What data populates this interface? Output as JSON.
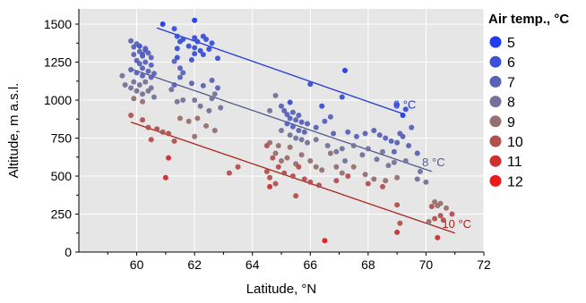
{
  "chart_data": {
    "type": "scatter",
    "title": "",
    "xlabel": "Latitude, °N",
    "ylabel": "Altitude, m a.s.l.",
    "xlim": [
      58,
      72
    ],
    "ylim": [
      0,
      1600
    ],
    "xticks": [
      60,
      62,
      64,
      66,
      68,
      70,
      72
    ],
    "yticks": [
      0,
      250,
      500,
      750,
      1000,
      1250,
      1500
    ],
    "grid": true,
    "legend": {
      "title": "Air temp., °C",
      "placement": "right",
      "entries": [
        {
          "label": "5",
          "color": "#1f3cf0"
        },
        {
          "label": "6",
          "color": "#3a50d6"
        },
        {
          "label": "7",
          "color": "#5a62b8"
        },
        {
          "label": "8",
          "color": "#76739a"
        },
        {
          "label": "9",
          "color": "#967070"
        },
        {
          "label": "10",
          "color": "#b2504e"
        },
        {
          "label": "11",
          "color": "#cc3030"
        },
        {
          "label": "12",
          "color": "#ea1a1a"
        }
      ]
    },
    "isotherms": [
      {
        "label": "6 °C",
        "color": "#2237d6",
        "x": [
          60.7,
          69.2
        ],
        "y": [
          1475,
          910
        ]
      },
      {
        "label": "8 °C",
        "color": "#525a8e",
        "x": [
          59.8,
          70.2
        ],
        "y": [
          1205,
          530
        ]
      },
      {
        "label": "10 °C",
        "color": "#a8241e",
        "x": [
          59.8,
          71.0
        ],
        "y": [
          855,
          125
        ]
      }
    ],
    "series": [
      {
        "legend_index": 0,
        "points": [
          [
            62.0,
            1525
          ],
          [
            60.9,
            1500
          ],
          [
            67.2,
            1195
          ],
          [
            69.2,
            900
          ]
        ]
      },
      {
        "legend_index": 1,
        "points": [
          [
            61.3,
            1470
          ],
          [
            61.4,
            1420
          ],
          [
            61.6,
            1400
          ],
          [
            61.5,
            1385
          ],
          [
            61.8,
            1355
          ],
          [
            62.0,
            1410
          ],
          [
            62.1,
            1385
          ],
          [
            62.3,
            1420
          ],
          [
            62.4,
            1400
          ],
          [
            62.6,
            1375
          ],
          [
            62.0,
            1345
          ],
          [
            62.2,
            1325
          ],
          [
            62.3,
            1300
          ],
          [
            62.0,
            1305
          ],
          [
            62.5,
            1335
          ],
          [
            62.8,
            1275
          ],
          [
            61.9,
            1265
          ],
          [
            61.4,
            1280
          ],
          [
            60.3,
            1330
          ],
          [
            60.1,
            1355
          ],
          [
            60.2,
            1300
          ],
          [
            61.4,
            1340
          ],
          [
            66.0,
            1105
          ],
          [
            67.1,
            1020
          ],
          [
            69.0,
            970
          ],
          [
            69.3,
            940
          ],
          [
            65.3,
            985
          ],
          [
            66.4,
            960
          ]
        ]
      },
      {
        "legend_index": 2,
        "points": [
          [
            59.8,
            1390
          ],
          [
            59.9,
            1350
          ],
          [
            60.0,
            1370
          ],
          [
            60.1,
            1320
          ],
          [
            60.2,
            1290
          ],
          [
            60.3,
            1340
          ],
          [
            60.4,
            1310
          ],
          [
            60.5,
            1280
          ],
          [
            59.9,
            1300
          ],
          [
            60.0,
            1260
          ],
          [
            60.1,
            1240
          ],
          [
            60.3,
            1250
          ],
          [
            60.5,
            1230
          ],
          [
            60.2,
            1210
          ],
          [
            60.4,
            1190
          ],
          [
            60.6,
            1175
          ],
          [
            59.8,
            1200
          ],
          [
            60.0,
            1180
          ],
          [
            60.2,
            1160
          ],
          [
            60.5,
            1150
          ],
          [
            61.3,
            1255
          ],
          [
            61.5,
            1210
          ],
          [
            61.6,
            1180
          ],
          [
            61.5,
            1150
          ],
          [
            61.9,
            1110
          ],
          [
            62.3,
            1095
          ],
          [
            62.6,
            1130
          ],
          [
            62.8,
            1080
          ],
          [
            61.3,
            1100
          ],
          [
            65.0,
            960
          ],
          [
            65.1,
            930
          ],
          [
            65.2,
            905
          ],
          [
            65.4,
            920
          ],
          [
            65.3,
            880
          ],
          [
            65.5,
            870
          ],
          [
            65.6,
            900
          ],
          [
            65.7,
            855
          ],
          [
            65.9,
            845
          ],
          [
            65.2,
            845
          ],
          [
            65.4,
            825
          ],
          [
            65.6,
            800
          ],
          [
            65.8,
            790
          ],
          [
            66.2,
            820
          ],
          [
            66.5,
            860
          ],
          [
            66.7,
            890
          ],
          [
            66.8,
            780
          ],
          [
            67.3,
            790
          ],
          [
            67.6,
            760
          ],
          [
            67.9,
            780
          ],
          [
            68.2,
            800
          ],
          [
            68.4,
            770
          ],
          [
            68.6,
            750
          ],
          [
            68.8,
            730
          ],
          [
            69.0,
            720
          ],
          [
            69.2,
            760
          ],
          [
            69.4,
            700
          ],
          [
            69.1,
            780
          ],
          [
            69.5,
            820
          ],
          [
            68.9,
            660
          ],
          [
            69.7,
            650
          ]
        ]
      },
      {
        "legend_index": 3,
        "points": [
          [
            59.5,
            1160
          ],
          [
            59.6,
            1100
          ],
          [
            59.8,
            1080
          ],
          [
            60.0,
            1060
          ],
          [
            60.2,
            1040
          ],
          [
            60.4,
            1060
          ],
          [
            60.6,
            1020
          ],
          [
            59.9,
            1120
          ],
          [
            60.1,
            1100
          ],
          [
            60.3,
            1120
          ],
          [
            60.5,
            1080
          ],
          [
            61.2,
            1070
          ],
          [
            61.6,
            1000
          ],
          [
            62.0,
            1000
          ],
          [
            62.2,
            960
          ],
          [
            62.6,
            1010
          ],
          [
            62.7,
            1040
          ],
          [
            62.5,
            930
          ],
          [
            62.9,
            950
          ],
          [
            61.4,
            990
          ],
          [
            64.8,
            1030
          ],
          [
            65.0,
            800
          ],
          [
            65.3,
            770
          ],
          [
            65.5,
            750
          ],
          [
            65.7,
            740
          ],
          [
            65.9,
            720
          ],
          [
            66.2,
            740
          ],
          [
            66.6,
            700
          ],
          [
            66.9,
            660
          ],
          [
            67.1,
            680
          ],
          [
            67.5,
            700
          ],
          [
            67.8,
            640
          ],
          [
            68.0,
            680
          ],
          [
            68.3,
            610
          ],
          [
            68.5,
            660
          ],
          [
            68.7,
            570
          ],
          [
            68.9,
            590
          ],
          [
            69.3,
            600
          ],
          [
            69.7,
            480
          ],
          [
            70.0,
            460
          ],
          [
            69.8,
            530
          ],
          [
            67.2,
            600
          ],
          [
            64.6,
            930
          ]
        ]
      },
      {
        "legend_index": 4,
        "points": [
          [
            59.9,
            1010
          ],
          [
            60.2,
            990
          ],
          [
            61.5,
            880
          ],
          [
            61.8,
            860
          ],
          [
            62.1,
            880
          ],
          [
            62.4,
            830
          ],
          [
            62.7,
            800
          ],
          [
            62.0,
            760
          ],
          [
            64.6,
            720
          ],
          [
            64.8,
            650
          ],
          [
            65.0,
            600
          ],
          [
            65.2,
            620
          ],
          [
            65.5,
            580
          ],
          [
            65.7,
            640
          ],
          [
            66.0,
            600
          ],
          [
            66.2,
            560
          ],
          [
            66.4,
            540
          ],
          [
            66.7,
            650
          ],
          [
            66.9,
            560
          ],
          [
            67.1,
            520
          ],
          [
            67.5,
            560
          ],
          [
            67.9,
            510
          ],
          [
            68.2,
            480
          ],
          [
            68.6,
            470
          ],
          [
            69.0,
            490
          ],
          [
            64.9,
            700
          ],
          [
            65.3,
            690
          ],
          [
            70.3,
            330
          ],
          [
            70.4,
            305
          ],
          [
            70.5,
            320
          ],
          [
            70.7,
            290
          ],
          [
            70.1,
            200
          ]
        ]
      },
      {
        "legend_index": 5,
        "points": [
          [
            59.8,
            900
          ],
          [
            60.2,
            870
          ],
          [
            60.4,
            820
          ],
          [
            60.7,
            810
          ],
          [
            60.9,
            790
          ],
          [
            61.1,
            780
          ],
          [
            60.5,
            740
          ],
          [
            61.3,
            730
          ],
          [
            64.5,
            700
          ],
          [
            64.7,
            620
          ],
          [
            64.9,
            560
          ],
          [
            65.1,
            520
          ],
          [
            65.4,
            500
          ],
          [
            65.6,
            560
          ],
          [
            65.8,
            480
          ],
          [
            66.0,
            460
          ],
          [
            66.3,
            440
          ],
          [
            66.9,
            470
          ],
          [
            67.3,
            500
          ],
          [
            68.0,
            450
          ],
          [
            68.5,
            430
          ],
          [
            64.6,
            490
          ],
          [
            64.8,
            450
          ],
          [
            64.5,
            530
          ],
          [
            63.2,
            520
          ],
          [
            63.5,
            560
          ],
          [
            65.5,
            370
          ],
          [
            69.0,
            310
          ],
          [
            69.1,
            190
          ],
          [
            70.2,
            300
          ],
          [
            70.3,
            220
          ],
          [
            70.5,
            240
          ],
          [
            70.6,
            210
          ],
          [
            70.9,
            250
          ]
        ]
      },
      {
        "legend_index": 6,
        "points": [
          [
            61.0,
            490
          ],
          [
            61.1,
            620
          ],
          [
            64.6,
            430
          ],
          [
            69.0,
            130
          ],
          [
            70.4,
            95
          ]
        ]
      },
      {
        "legend_index": 7,
        "points": [
          [
            66.5,
            75
          ]
        ]
      }
    ]
  }
}
